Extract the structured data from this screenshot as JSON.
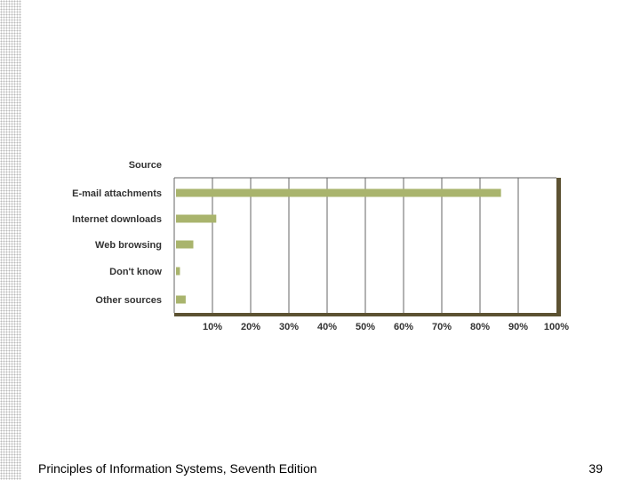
{
  "chart_data": {
    "type": "bar",
    "orientation": "horizontal",
    "ylabel": "Source",
    "categories": [
      "E-mail attachments",
      "Internet downloads",
      "Web browsing",
      "Don't know",
      "Other sources"
    ],
    "values": [
      85.5,
      11,
      5,
      1.5,
      3
    ],
    "xticks": [
      "10%",
      "20%",
      "30%",
      "40%",
      "50%",
      "60%",
      "70%",
      "80%",
      "90%",
      "100%"
    ],
    "xlim": [
      0,
      100
    ],
    "grid": true,
    "bar_color": "#a9b46d",
    "frame_color": "#5c5232"
  },
  "footer": {
    "title": "Principles of Information Systems, Seventh Edition",
    "page_number": "39"
  }
}
